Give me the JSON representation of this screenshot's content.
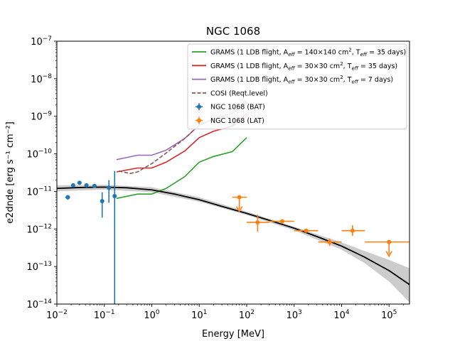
{
  "chart_data": {
    "type": "scatter",
    "title": "NGC 1068",
    "xlabel": "Energy [MeV]",
    "ylabel": "e2dnde [erg s⁻¹ cm⁻²]",
    "xscale": "log",
    "yscale": "log",
    "xlim": [
      0.01,
      270000
    ],
    "ylim": [
      1e-14,
      1e-07
    ],
    "x_tick_labels": [
      {
        "mant": "10",
        "exp": "−2",
        "value": 0.01
      },
      {
        "mant": "10",
        "exp": "−1",
        "value": 0.1
      },
      {
        "mant": "10",
        "exp": "0",
        "value": 1
      },
      {
        "mant": "10",
        "exp": "1",
        "value": 10
      },
      {
        "mant": "10",
        "exp": "2",
        "value": 100
      },
      {
        "mant": "10",
        "exp": "3",
        "value": 1000
      },
      {
        "mant": "10",
        "exp": "4",
        "value": 10000
      },
      {
        "mant": "10",
        "exp": "5",
        "value": 100000
      }
    ],
    "y_tick_labels": [
      {
        "mant": "10",
        "exp": "−14",
        "value": 1e-14
      },
      {
        "mant": "10",
        "exp": "−13",
        "value": 1e-13
      },
      {
        "mant": "10",
        "exp": "−12",
        "value": 1e-12
      },
      {
        "mant": "10",
        "exp": "−11",
        "value": 1e-11
      },
      {
        "mant": "10",
        "exp": "−10",
        "value": 1e-10
      },
      {
        "mant": "10",
        "exp": "−9",
        "value": 1e-09
      },
      {
        "mant": "10",
        "exp": "−8",
        "value": 1e-08
      },
      {
        "mant": "10",
        "exp": "−7",
        "value": 1e-07
      }
    ],
    "legend_position": "top-right",
    "legend": [
      {
        "label": "GRAMS (1 LDB flight, A",
        "sub": "eff",
        "mid": " = 140×140 cm",
        "sup": "2",
        "mid2": ", T",
        "sub2": "eff",
        "end": " = 35 days)",
        "color": "#2ca02c",
        "style": "solid"
      },
      {
        "label": "GRAMS (1 LDB flight, A",
        "sub": "eff",
        "mid": " = 30×30 cm",
        "sup": "2",
        "mid2": ", T",
        "sub2": "eff",
        "end": " = 35 days)",
        "color": "#d62728",
        "style": "solid"
      },
      {
        "label": "GRAMS (1 LDB flight, A",
        "sub": "eff",
        "mid": " = 30×30 cm",
        "sup": "2",
        "mid2": ", T",
        "sub2": "eff",
        "end": " = 7 days)",
        "color": "#9467bd",
        "style": "solid"
      },
      {
        "label": "COSI (Reqt.level)",
        "color": "#8c564b",
        "style": "dashed"
      },
      {
        "label": "NGC 1068 (BAT)",
        "color": "#1f77b4",
        "style": "errorbar-point"
      },
      {
        "label": "NGC 1068 (LAT)",
        "color": "#ff7f0e",
        "style": "errorbar-square"
      }
    ],
    "series": [
      {
        "name": "GRAMS (1 LDB flight, Aeff = 140×140 cm2, Teff = 35 days)",
        "color": "#2ca02c",
        "points": [
          [
            0.18,
            6.5e-12
          ],
          [
            0.5,
            8.5e-12
          ],
          [
            1.0,
            8.5e-12
          ],
          [
            2.0,
            1.2e-11
          ],
          [
            5.0,
            2.5e-11
          ],
          [
            10,
            6e-11
          ],
          [
            20,
            8.5e-11
          ],
          [
            50,
            1.15e-10
          ],
          [
            100,
            2.7e-10
          ]
        ]
      },
      {
        "name": "GRAMS (1 LDB flight, Aeff = 30×30 cm2, Teff = 35 days)",
        "color": "#d62728",
        "points": [
          [
            0.18,
            3.3e-11
          ],
          [
            0.5,
            4.2e-11
          ],
          [
            1.0,
            4.2e-11
          ],
          [
            2.0,
            6e-11
          ],
          [
            5.0,
            1.2e-10
          ],
          [
            10,
            2.7e-10
          ],
          [
            20,
            4e-10
          ],
          [
            50,
            5.5e-10
          ],
          [
            100,
            1.2e-09
          ]
        ]
      },
      {
        "name": "GRAMS (1 LDB flight, Aeff = 30×30 cm2, Teff = 7 days)",
        "color": "#9467bd",
        "points": [
          [
            0.18,
            7e-11
          ],
          [
            0.5,
            9.2e-11
          ],
          [
            1.0,
            9.2e-11
          ],
          [
            2.0,
            1.25e-10
          ],
          [
            5.0,
            2.6e-10
          ],
          [
            10,
            5.8e-10
          ],
          [
            20,
            8.5e-10
          ],
          [
            50,
            1.2e-09
          ],
          [
            100,
            2.6e-09
          ]
        ]
      },
      {
        "name": "COSI (Reqt.level)",
        "color": "#8c564b",
        "dashed": true,
        "points": [
          [
            0.2,
            3.5e-11
          ],
          [
            0.35,
            3e-11
          ],
          [
            0.5,
            3.3e-11
          ],
          [
            1.0,
            5.5e-11
          ],
          [
            2.0,
            1.05e-10
          ],
          [
            5.0,
            2.6e-10
          ],
          [
            8.0,
            4.5e-10
          ]
        ]
      }
    ],
    "model": {
      "color": "#000000",
      "points": [
        [
          0.01,
          1.2e-11
        ],
        [
          0.03,
          1.27e-11
        ],
        [
          0.1,
          1.3e-11
        ],
        [
          0.3,
          1.25e-11
        ],
        [
          1,
          1.1e-11
        ],
        [
          3,
          8.5e-12
        ],
        [
          10,
          6e-12
        ],
        [
          30,
          4e-12
        ],
        [
          100,
          2.6e-12
        ],
        [
          300,
          1.7e-12
        ],
        [
          1000,
          1.05e-12
        ],
        [
          3000,
          6.3e-13
        ],
        [
          10000,
          3.5e-13
        ],
        [
          30000,
          1.8e-13
        ],
        [
          100000,
          7.8e-14
        ],
        [
          270000,
          3.3e-14
        ]
      ],
      "band_upper": [
        [
          0.01,
          1.45e-11
        ],
        [
          0.1,
          1.5e-11
        ],
        [
          1,
          1.3e-11
        ],
        [
          10,
          7e-12
        ],
        [
          100,
          2.9e-12
        ],
        [
          1000,
          1.15e-12
        ],
        [
          10000,
          4.4e-13
        ],
        [
          30000,
          2.6e-13
        ],
        [
          100000,
          1.5e-13
        ],
        [
          270000,
          9e-14
        ]
      ],
      "band_lower": [
        [
          0.01,
          1e-11
        ],
        [
          0.1,
          1.12e-11
        ],
        [
          1,
          9.5e-12
        ],
        [
          10,
          5.3e-12
        ],
        [
          100,
          2.35e-12
        ],
        [
          1000,
          9.2e-13
        ],
        [
          10000,
          2.8e-13
        ],
        [
          30000,
          1.25e-13
        ],
        [
          100000,
          4e-14
        ],
        [
          270000,
          1.1e-14
        ]
      ]
    },
    "bat_points": {
      "color": "#1f77b4",
      "points": [
        {
          "x": 0.017,
          "y": 7e-12,
          "xlo": 0.015,
          "xhi": 0.019,
          "ylo": 6e-12,
          "yhi": 8e-12
        },
        {
          "x": 0.022,
          "y": 1.45e-11,
          "xlo": 0.02,
          "xhi": 0.024,
          "ylo": 1.3e-11,
          "yhi": 1.6e-11
        },
        {
          "x": 0.03,
          "y": 1.7e-11,
          "xlo": 0.027,
          "xhi": 0.033,
          "ylo": 1.55e-11,
          "yhi": 1.85e-11
        },
        {
          "x": 0.042,
          "y": 1.45e-11,
          "xlo": 0.038,
          "xhi": 0.046,
          "ylo": 1.3e-11,
          "yhi": 1.6e-11
        },
        {
          "x": 0.062,
          "y": 1.4e-11,
          "xlo": 0.056,
          "xhi": 0.068,
          "ylo": 1.25e-11,
          "yhi": 1.55e-11
        },
        {
          "x": 0.09,
          "y": 5.5e-12,
          "xlo": 0.084,
          "xhi": 0.096,
          "ylo": 2e-12,
          "yhi": 9.5e-12
        },
        {
          "x": 0.125,
          "y": 1.25e-11,
          "xlo": 0.12,
          "xhi": 0.13,
          "ylo": 5e-12,
          "yhi": 2e-11
        },
        {
          "x": 0.165,
          "y": 7.5e-12,
          "xlo": 0.16,
          "xhi": 0.17,
          "ylo": 1e-14,
          "yhi": 3.5e-11
        }
      ]
    },
    "lat_points": {
      "color": "#ff7f0e",
      "points": [
        {
          "x": 70,
          "y": 7e-12,
          "xlo": 50,
          "xhi": 100,
          "upper_limit": true
        },
        {
          "x": 170,
          "y": 1.5e-12,
          "xlo": 100,
          "xhi": 300,
          "ylo": 8.5e-13,
          "yhi": 2.4e-12
        },
        {
          "x": 560,
          "y": 1.6e-12,
          "xlo": 300,
          "xhi": 1000,
          "ylo": 1.45e-12,
          "yhi": 1.75e-12
        },
        {
          "x": 1800,
          "y": 9e-13,
          "xlo": 1000,
          "xhi": 3200,
          "ylo": 8.2e-13,
          "yhi": 9.8e-13
        },
        {
          "x": 5600,
          "y": 4.5e-13,
          "xlo": 3200,
          "xhi": 10000,
          "ylo": 3.5e-13,
          "yhi": 5.6e-13
        },
        {
          "x": 17000,
          "y": 9e-13,
          "xlo": 10000,
          "xhi": 31000,
          "ylo": 6.5e-13,
          "yhi": 1.25e-12
        },
        {
          "x": 100000,
          "y": 4.5e-13,
          "xlo": 31000,
          "xhi": 300000,
          "upper_limit": true
        }
      ]
    }
  }
}
